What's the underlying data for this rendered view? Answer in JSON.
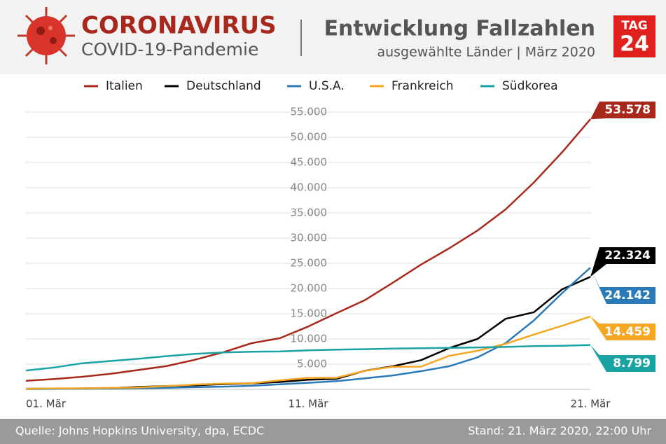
{
  "header": {
    "title": "CORONAVIRUS",
    "subtitle": "COVID-19-Pandemie",
    "headline": "Entwicklung Fallzahlen",
    "subheadline": "ausgewählte Länder | März 2020",
    "logo_top": "TAG",
    "logo_bottom": "24"
  },
  "footer": {
    "source": "Quelle: Johns Hopkins University, dpa, ECDC",
    "date": "Stand: 21. März 2020, 22:00 Uhr"
  },
  "chart_data": {
    "type": "line",
    "categories": [
      "01. Mär",
      null,
      null,
      null,
      null,
      null,
      null,
      null,
      null,
      null,
      "11. Mär",
      null,
      null,
      null,
      null,
      null,
      null,
      null,
      null,
      null,
      "21. Mär"
    ],
    "ylim": [
      0,
      55000
    ],
    "yticks": [
      {
        "value": 5000,
        "label": "5.000"
      },
      {
        "value": 10000,
        "label": "10.000"
      },
      {
        "value": 15000,
        "label": "15.000"
      },
      {
        "value": 20000,
        "label": "20.000"
      },
      {
        "value": 25000,
        "label": "25.000"
      },
      {
        "value": 30000,
        "label": "30.000"
      },
      {
        "value": 35000,
        "label": "35.000"
      },
      {
        "value": 40000,
        "label": "40.000"
      },
      {
        "value": 45000,
        "label": "45.000"
      },
      {
        "value": 50000,
        "label": "50.000"
      },
      {
        "value": 55000,
        "label": "55.000"
      }
    ],
    "grid": true,
    "series": [
      {
        "name": "Italien",
        "color": "#a8291c",
        "values": [
          1694,
          2036,
          2502,
          3089,
          3858,
          4636,
          5883,
          7375,
          9172,
          10149,
          12462,
          15113,
          17660,
          21157,
          24747,
          27980,
          31506,
          35713,
          41035,
          47021,
          53578
        ],
        "value_labels": [
          null,
          null,
          null,
          null,
          null,
          null,
          null,
          null,
          null,
          null,
          null,
          null,
          null,
          null,
          null,
          null,
          null,
          null,
          null,
          null,
          "53.578"
        ]
      },
      {
        "name": "Deutschland",
        "color": "#000000",
        "values": [
          130,
          159,
          196,
          262,
          482,
          670,
          799,
          1040,
          1176,
          1457,
          1908,
          2078,
          3675,
          4585,
          5795,
          8200,
          10000,
          14000,
          15300,
          19848,
          22324
        ],
        "value_labels": [
          null,
          null,
          null,
          null,
          null,
          null,
          null,
          null,
          null,
          null,
          null,
          null,
          null,
          null,
          null,
          null,
          null,
          null,
          null,
          null,
          "22.324"
        ]
      },
      {
        "name": "U.S.A.",
        "color": "#2a7ab8",
        "values": [
          75,
          100,
          124,
          158,
          221,
          319,
          435,
          541,
          704,
          994,
          1301,
          1630,
          2183,
          2770,
          3613,
          4596,
          6344,
          9197,
          13677,
          19100,
          24142
        ],
        "value_labels": [
          null,
          null,
          null,
          null,
          null,
          null,
          null,
          null,
          null,
          null,
          null,
          null,
          null,
          null,
          null,
          null,
          null,
          null,
          null,
          null,
          "24.142"
        ]
      },
      {
        "name": "Frankreich",
        "color": "#f5a623",
        "values": [
          130,
          191,
          204,
          288,
          380,
          656,
          957,
          1134,
          1217,
          1792,
          2289,
          2289,
          3672,
          4480,
          4513,
          6650,
          7652,
          9043,
          10871,
          12612,
          14459
        ],
        "value_labels": [
          null,
          null,
          null,
          null,
          null,
          null,
          null,
          null,
          null,
          null,
          null,
          null,
          null,
          null,
          null,
          null,
          null,
          null,
          null,
          null,
          "14.459"
        ]
      },
      {
        "name": "Südkorea",
        "color": "#1aa3a3",
        "values": [
          3736,
          4335,
          5186,
          5621,
          6088,
          6593,
          7041,
          7314,
          7478,
          7513,
          7755,
          7869,
          7979,
          8086,
          8162,
          8236,
          8320,
          8413,
          8565,
          8652,
          8799
        ],
        "value_labels": [
          null,
          null,
          null,
          null,
          null,
          null,
          null,
          null,
          null,
          null,
          null,
          null,
          null,
          null,
          null,
          null,
          null,
          null,
          null,
          null,
          "8.799"
        ]
      }
    ]
  }
}
